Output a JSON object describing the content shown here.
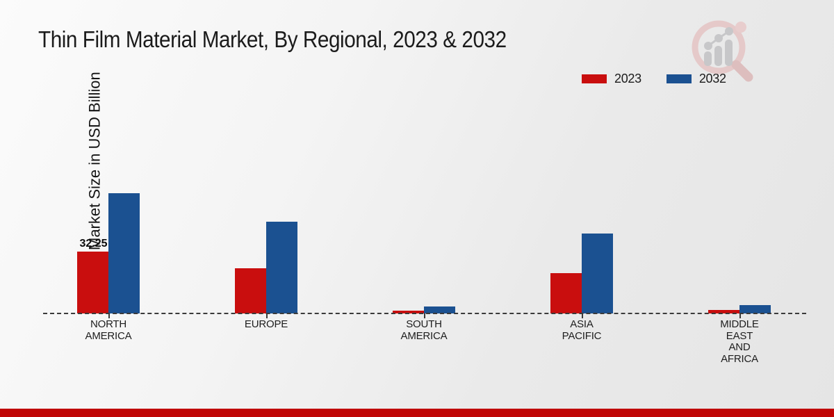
{
  "page": {
    "background_top": "#fbfbfb",
    "background_bottom": "#e5e5e5",
    "footer_color": "#c00505"
  },
  "title": "Thin Film Material Market, By Regional, 2023 & 2032",
  "y_axis_label": "Market Size in USD Billion",
  "legend": {
    "position": "top-right",
    "items": [
      {
        "label": "2023",
        "color": "#c90e0e"
      },
      {
        "label": "2032",
        "color": "#1b5191"
      }
    ]
  },
  "logo": {
    "name": "market-research-growth-magnifier-logo",
    "ring_color": "#e5c8c8",
    "bar_color": "#c6c6c8"
  },
  "chart_data": {
    "type": "bar",
    "title": "Thin Film Material Market, By Regional, 2023 & 2032",
    "xlabel": "",
    "ylabel": "Market Size in USD Billion",
    "categories": [
      "NORTH AMERICA",
      "EUROPE",
      "SOUTH AMERICA",
      "ASIA PACIFIC",
      "MIDDLE EAST AND AFRICA"
    ],
    "category_label_lines": [
      "NORTH\nAMERICA",
      "EUROPE",
      "SOUTH\nAMERICA",
      "ASIA\nPACIFIC",
      "MIDDLE\nEAST\nAND\nAFRICA"
    ],
    "series": [
      {
        "name": "2023",
        "color": "#c90e0e",
        "values": [
          32.25,
          23.5,
          1.5,
          21.0,
          1.8
        ]
      },
      {
        "name": "2032",
        "color": "#1b5191",
        "values": [
          62.7,
          47.8,
          3.6,
          41.7,
          4.3
        ]
      }
    ],
    "annotations": [
      {
        "series": "2023",
        "category": "NORTH AMERICA",
        "text": "32.25"
      }
    ],
    "value_axis_visible": false,
    "grid": false,
    "baseline_style": "dashed",
    "legend_position": "top-right",
    "ylim": [
      0,
      65
    ]
  }
}
